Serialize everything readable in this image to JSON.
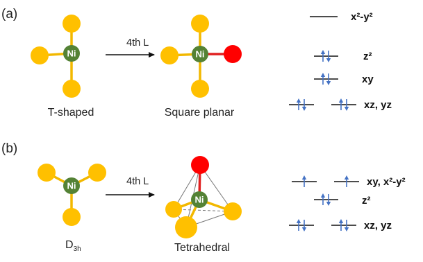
{
  "panel_a": {
    "label": "(a)",
    "left_caption": "T-shaped",
    "right_caption": "Square planar",
    "arrow_label": "4th L",
    "metal_label": "Ni",
    "levels": [
      {
        "name": "x²-y²",
        "electrons": 0
      },
      {
        "name": "z²",
        "electrons": 2
      },
      {
        "name": "xy",
        "electrons": 2
      },
      {
        "name": "xz, yz",
        "electrons": 4
      }
    ]
  },
  "panel_b": {
    "label": "(b)",
    "left_caption_main": "D",
    "left_caption_sub": "3h",
    "right_caption": "Tetrahedral",
    "arrow_label": "4th L",
    "metal_label": "Ni",
    "levels": [
      {
        "name": "xy, x²-y²",
        "electrons": 2
      },
      {
        "name": "z²",
        "electrons": 2
      },
      {
        "name": "xz, yz",
        "electrons": 4
      }
    ]
  },
  "colors": {
    "ligand": "#FFC000",
    "metal": "#548235",
    "incoming_ligand": "#FF0000",
    "bond": "#F2B800",
    "new_bond": "#E02020",
    "spin_arrow": "#4472C4",
    "level_line": "#111111"
  },
  "icons": {
    "up_spin": "up-arrow-icon",
    "down_spin": "down-arrow-icon",
    "reaction_arrow": "right-arrow-icon"
  }
}
